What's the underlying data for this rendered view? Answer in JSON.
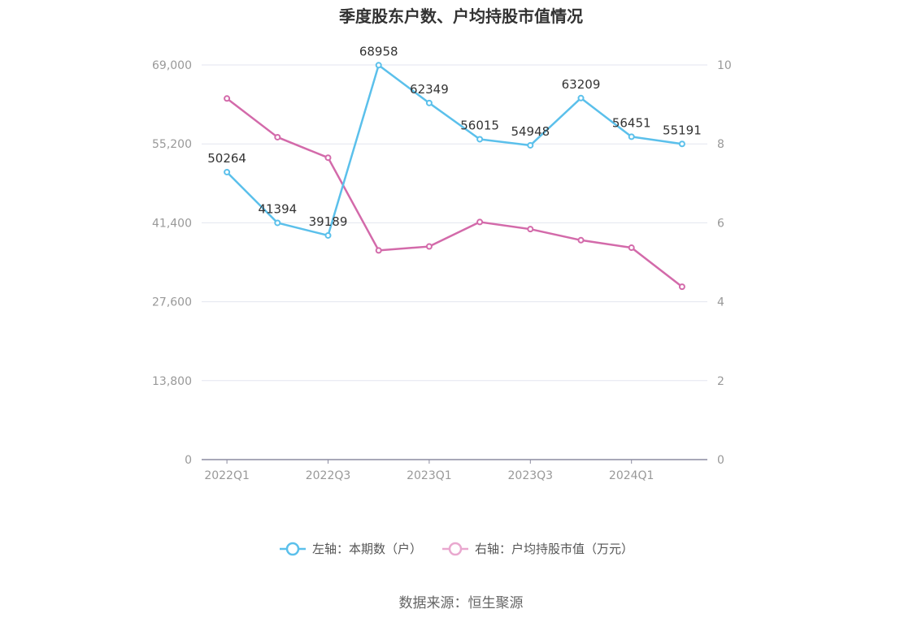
{
  "chart_data": {
    "type": "line",
    "title": "季度股东户数、户均持股市值情况",
    "categories": [
      "2022Q1",
      "2022Q2",
      "2022Q3",
      "2022Q4",
      "2023Q1",
      "2023Q2",
      "2023Q3",
      "2023Q4",
      "2024Q1",
      "2024Q2"
    ],
    "x_tick_labels": [
      "2022Q1",
      "2022Q3",
      "2023Q1",
      "2023Q3",
      "2024Q1"
    ],
    "left_axis": {
      "ylim": [
        0,
        69000
      ],
      "ticks": [
        "0",
        "13,800",
        "27,600",
        "41,400",
        "55,200",
        "69,000"
      ]
    },
    "right_axis": {
      "ylim": [
        0,
        10
      ],
      "ticks": [
        "0",
        "2",
        "4",
        "6",
        "8",
        "10"
      ]
    },
    "series": [
      {
        "name": "左轴：本期数（户）",
        "axis": "left",
        "color": "#5bc0eb",
        "values": [
          50264,
          41394,
          39189,
          68958,
          62349,
          56015,
          54948,
          63209,
          56451,
          55191
        ],
        "labels": [
          "50264",
          "41394",
          "39189",
          "68958",
          "62349",
          "56015",
          "54948",
          "63209",
          "56451",
          "55191"
        ]
      },
      {
        "name": "右轴：户均持股市值（万元）",
        "axis": "right",
        "color": "#d36aaa",
        "values": [
          9.15,
          8.17,
          7.65,
          5.3,
          5.4,
          6.02,
          5.84,
          5.56,
          5.37,
          4.38
        ]
      }
    ],
    "legend_position": "bottom-center",
    "grid": true
  },
  "source": "数据来源：恒生聚源"
}
